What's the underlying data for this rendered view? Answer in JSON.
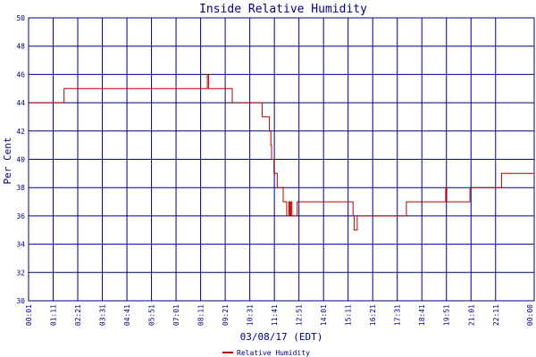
{
  "chart_data": {
    "type": "line",
    "title": "Inside Relative Humidity",
    "ylabel": "Per Cent",
    "xlabel": "03/08/17 (EDT)",
    "ylim": [
      30,
      50
    ],
    "xlim": [
      "00:01",
      "00:00"
    ],
    "grid": true,
    "legend_position": "bottom-center",
    "colors": {
      "axis": "#000080",
      "grid": "#000080",
      "series": "#b00000"
    },
    "yticks": [
      30,
      32,
      34,
      36,
      38,
      40,
      42,
      44,
      46,
      48,
      50
    ],
    "xtick_labels": [
      "00:01",
      "01:11",
      "02:21",
      "03:31",
      "04:41",
      "05:51",
      "07:01",
      "08:11",
      "09:21",
      "10:31",
      "11:41",
      "12:51",
      "14:01",
      "15:11",
      "16:21",
      "17:31",
      "18:41",
      "19:51",
      "21:01",
      "22:11",
      "00:00"
    ],
    "series": [
      {
        "name": "Relative Humidity",
        "x": [
          "00:01",
          "01:41",
          "01:42",
          "08:29",
          "08:30",
          "08:34",
          "08:35",
          "09:40",
          "09:41",
          "10:34",
          "10:35",
          "11:05",
          "11:06",
          "11:26",
          "11:27",
          "11:31",
          "11:33",
          "11:37",
          "11:40",
          "11:43",
          "11:46",
          "11:49",
          "11:53",
          "11:56",
          "12:06",
          "12:10",
          "12:16",
          "12:19",
          "12:22",
          "12:25",
          "12:28",
          "12:31",
          "12:37",
          "12:40",
          "12:43",
          "12:46",
          "12:52",
          "12:55",
          "13:01",
          "15:21",
          "15:25",
          "15:28",
          "15:35",
          "15:37",
          "17:55",
          "17:57",
          "19:46",
          "19:49",
          "19:52",
          "19:55",
          "20:55",
          "20:58",
          "22:25",
          "22:28",
          "23:59"
        ],
        "y": [
          44,
          44,
          45,
          45,
          46,
          45,
          45,
          45,
          44,
          44,
          44,
          44,
          43,
          43,
          42,
          41,
          40,
          40,
          39,
          39,
          39,
          38,
          38,
          38,
          37,
          37,
          36,
          36,
          37,
          36,
          37,
          36,
          36,
          36,
          36,
          37,
          37,
          37,
          37,
          37,
          36,
          35,
          35,
          36,
          36,
          37,
          37,
          38,
          37,
          37,
          37,
          38,
          38,
          39,
          39
        ]
      }
    ]
  }
}
